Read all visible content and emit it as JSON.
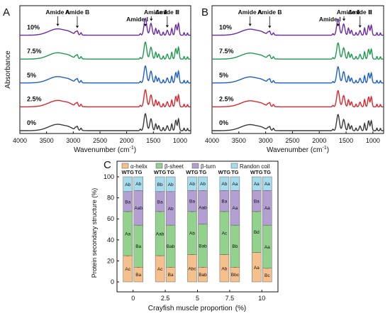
{
  "chart_data": [
    {
      "type": "line",
      "panel_label": "A",
      "xlabel": "Wavenumber (cm",
      "xlabel_sup": "-1",
      "xlabel_end": ")",
      "ylabel": "Absorbance",
      "x_ticks": [
        "4000",
        "3500",
        "3000",
        "2500",
        "2000",
        "1500",
        "1000"
      ],
      "xlim": [
        4000,
        800
      ],
      "x_reversed": true,
      "series": [
        {
          "name": "10%",
          "color": "#6a2aa6"
        },
        {
          "name": "7.5%",
          "color": "#1f9a4f"
        },
        {
          "name": "5%",
          "color": "#1c5fc9"
        },
        {
          "name": "2.5%",
          "color": "#d9272e"
        },
        {
          "name": "0%",
          "color": "#3a3a3a"
        }
      ],
      "annotations": [
        {
          "label": "Amide A",
          "x": 3290
        },
        {
          "label": "Amide B",
          "x": 2925
        },
        {
          "label": "Amide Ⅰ",
          "x": 1650
        },
        {
          "label": "Amide Ⅱ",
          "x": 1540
        },
        {
          "label": "Amide Ⅲ",
          "x": 1240
        }
      ]
    },
    {
      "type": "line",
      "panel_label": "B",
      "xlabel": "Wavenumber (cm",
      "xlabel_sup": "-1",
      "xlabel_end": ")",
      "ylabel": "",
      "x_ticks": [
        "4000",
        "3500",
        "3000",
        "2500",
        "2000",
        "1500",
        "1000"
      ],
      "xlim": [
        4000,
        800
      ],
      "x_reversed": true,
      "series": [
        {
          "name": "10%",
          "color": "#6a2aa6"
        },
        {
          "name": "7.5%",
          "color": "#1f9a4f"
        },
        {
          "name": "5%",
          "color": "#1c5fc9"
        },
        {
          "name": "2.5%",
          "color": "#d9272e"
        },
        {
          "name": "0%",
          "color": "#3a3a3a"
        }
      ],
      "annotations": [
        {
          "label": "Amide A",
          "x": 3290
        },
        {
          "label": "Amide B",
          "x": 2925
        },
        {
          "label": "Amide Ⅰ",
          "x": 1650
        },
        {
          "label": "Amide Ⅱ",
          "x": 1540
        },
        {
          "label": "Amide Ⅲ",
          "x": 1240
        }
      ]
    },
    {
      "type": "bar",
      "stacked": true,
      "panel_label": "C",
      "xlabel": "Crayfish muscle proportion",
      "xlabel_unit": "(%)",
      "ylabel": "Protein secondary structure (%)",
      "ylim": [
        0,
        100
      ],
      "y_ticks": [
        "0",
        "20",
        "40",
        "60",
        "80",
        "100"
      ],
      "categories": [
        "0",
        "2.5",
        "5",
        "7.5",
        "10"
      ],
      "group_labels": [
        "WTG",
        "TG"
      ],
      "legend": [
        {
          "name": "α-helix",
          "color": "#f6c08c"
        },
        {
          "name": "β-sheet",
          "color": "#92d28c"
        },
        {
          "name": "β-turn",
          "color": "#b39fd1"
        },
        {
          "name": "Randon coil",
          "color": "#a7dcec"
        }
      ],
      "bars": [
        {
          "category": "0",
          "group": "WTG",
          "values": [
            25,
            42,
            19,
            14
          ],
          "labels": [
            "Ac",
            "Aa",
            "Ba",
            "Ab"
          ]
        },
        {
          "category": "0",
          "group": "TG",
          "values": [
            14,
            40,
            33,
            13
          ],
          "labels": [
            "Ba",
            "Ba",
            "Aab",
            "Ab"
          ]
        },
        {
          "category": "2.5",
          "group": "WTG",
          "values": [
            25,
            42,
            19,
            14
          ],
          "labels": [
            "Ac",
            "Aab",
            "Ba",
            "Bb"
          ]
        },
        {
          "category": "2.5",
          "group": "TG",
          "values": [
            14,
            40,
            32,
            14
          ],
          "labels": [
            "Ba",
            "Bab",
            "Ab",
            "Ab"
          ]
        },
        {
          "category": "5",
          "group": "WTG",
          "values": [
            26,
            41,
            20,
            13
          ],
          "labels": [
            "Abc",
            "Ab",
            "Ba",
            "Ab"
          ]
        },
        {
          "category": "5",
          "group": "TG",
          "values": [
            14,
            41,
            32,
            13
          ],
          "labels": [
            "Bab",
            "Bab",
            "Aab",
            "Ab"
          ]
        },
        {
          "category": "7.5",
          "group": "WTG",
          "values": [
            26,
            41,
            20,
            13
          ],
          "labels": [
            "Ab",
            "Ac",
            "Ba",
            "Ab"
          ]
        },
        {
          "category": "7.5",
          "group": "TG",
          "values": [
            14,
            40,
            33,
            13
          ],
          "labels": [
            "Bbc",
            "Bb",
            "Aa",
            "Aa"
          ]
        },
        {
          "category": "10",
          "group": "WTG",
          "values": [
            28,
            39,
            20,
            13
          ],
          "labels": [
            "Aa",
            "Bd",
            "Ba",
            "Aa"
          ]
        },
        {
          "category": "10",
          "group": "TG",
          "values": [
            13,
            41,
            33,
            13
          ],
          "labels": [
            "Bc",
            "Aa",
            "Aa",
            "Aa"
          ]
        }
      ]
    }
  ]
}
